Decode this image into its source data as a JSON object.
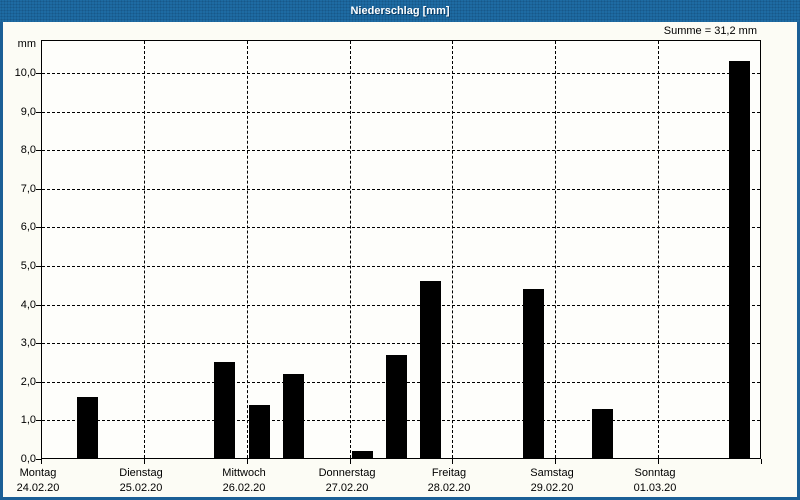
{
  "window": {
    "title": "Niederschlag [mm]",
    "summary_label": "Summe = 31,2 mm"
  },
  "colors": {
    "titlebar": "#1e6ba3",
    "window_border": "#1b5f96",
    "title_text": "#ffffff",
    "bar": "#000000",
    "grid": "#000000",
    "text": "#000000",
    "panel_background": "#fcfcf5",
    "plot_background": "#fefefb"
  },
  "chart_data": {
    "type": "bar",
    "title": "Niederschlag [mm]",
    "ylabel": "mm",
    "sum_mm": 31.2,
    "ylim": [
      0,
      10.9
    ],
    "ytick_step": 1.0,
    "ytick_labels": [
      "0,0",
      "1,0",
      "2,0",
      "3,0",
      "4,0",
      "5,0",
      "6,0",
      "7,0",
      "8,0",
      "9,0",
      "10,0"
    ],
    "grid": "dashed",
    "legend": "none",
    "days": [
      {
        "name": "Montag",
        "date": "24.02.20"
      },
      {
        "name": "Dienstag",
        "date": "25.02.20"
      },
      {
        "name": "Mittwoch",
        "date": "26.02.20"
      },
      {
        "name": "Donnerstag",
        "date": "27.02.20"
      },
      {
        "name": "Freitag",
        "date": "28.02.20"
      },
      {
        "name": "Samstag",
        "date": "29.02.20"
      },
      {
        "name": "Sonntag",
        "date": "01.03.20"
      }
    ],
    "bars": [
      {
        "day_index": 0,
        "day": "Montag",
        "slot": 1,
        "value_mm": 1.6
      },
      {
        "day_index": 1,
        "day": "Dienstag",
        "slot": 2,
        "value_mm": 2.5
      },
      {
        "day_index": 2,
        "day": "Mittwoch",
        "slot": 0,
        "value_mm": 1.4
      },
      {
        "day_index": 2,
        "day": "Mittwoch",
        "slot": 1,
        "value_mm": 2.2
      },
      {
        "day_index": 3,
        "day": "Donnerstag",
        "slot": 0,
        "value_mm": 0.2
      },
      {
        "day_index": 3,
        "day": "Donnerstag",
        "slot": 1,
        "value_mm": 2.7
      },
      {
        "day_index": 3,
        "day": "Donnerstag",
        "slot": 2,
        "value_mm": 4.6
      },
      {
        "day_index": 4,
        "day": "Freitag",
        "slot": 2,
        "value_mm": 4.4
      },
      {
        "day_index": 5,
        "day": "Samstag",
        "slot": 1,
        "value_mm": 1.3
      },
      {
        "day_index": 6,
        "day": "Sonntag",
        "slot": 2,
        "value_mm": 10.3
      }
    ]
  }
}
